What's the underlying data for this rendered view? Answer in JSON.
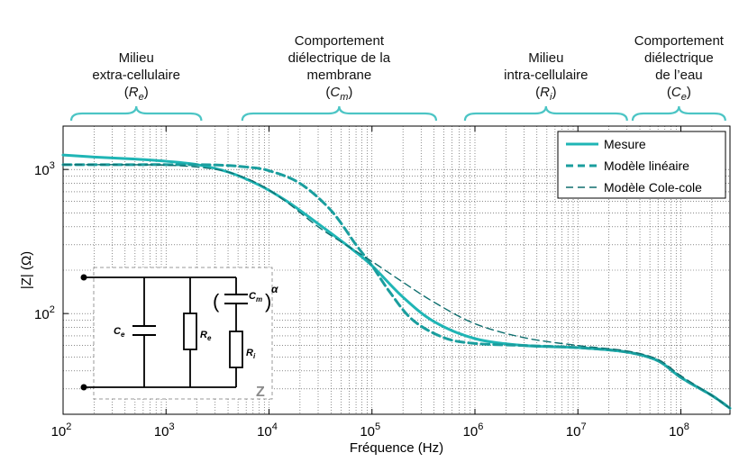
{
  "chart_data": {
    "type": "line",
    "xscale": "log",
    "yscale": "log",
    "xlim": [
      100,
      300000000
    ],
    "ylim": [
      20,
      2000
    ],
    "xlabel": "Fréquence (Hz)",
    "ylabel": "|Z| (Ω)",
    "grid": true,
    "legend_position": "top-right",
    "x_ticks": [
      {
        "value": 100,
        "base": "10",
        "exp": "2"
      },
      {
        "value": 1000,
        "base": "10",
        "exp": "3"
      },
      {
        "value": 10000,
        "base": "10",
        "exp": "4"
      },
      {
        "value": 100000,
        "base": "10",
        "exp": "5"
      },
      {
        "value": 1000000,
        "base": "10",
        "exp": "6"
      },
      {
        "value": 10000000,
        "base": "10",
        "exp": "7"
      },
      {
        "value": 100000000,
        "base": "10",
        "exp": "8"
      }
    ],
    "y_ticks": [
      {
        "value": 100,
        "base": "10",
        "exp": "2"
      },
      {
        "value": 1000,
        "base": "10",
        "exp": "3"
      }
    ],
    "series": [
      {
        "name": "Mesure",
        "color": "#1fb5b5",
        "style": "solid",
        "x": [
          100,
          200,
          500,
          1000,
          2000,
          4000,
          8000,
          15000,
          30000,
          60000,
          100000,
          200000,
          400000,
          1000000,
          3000000,
          10000000,
          30000000,
          60000000,
          100000000,
          200000000,
          300000000
        ],
        "y": [
          1260,
          1220,
          1180,
          1140,
          1080,
          960,
          780,
          600,
          420,
          290,
          215,
          130,
          88,
          67,
          60,
          58,
          54,
          47,
          36,
          27,
          22
        ]
      },
      {
        "name": "Modèle linéaire",
        "color": "#1a9e9e",
        "style": "dashed",
        "x": [
          100,
          200,
          500,
          1000,
          3000,
          6000,
          10000,
          20000,
          40000,
          70000,
          100000,
          150000,
          250000,
          500000,
          1000000,
          3000000,
          10000000,
          30000000,
          60000000,
          100000000,
          200000000,
          300000000
        ],
        "y": [
          1080,
          1080,
          1080,
          1080,
          1075,
          1040,
          980,
          800,
          520,
          300,
          215,
          140,
          90,
          68,
          62,
          60,
          58,
          54,
          47,
          36,
          27,
          22
        ]
      },
      {
        "name": "Modèle Cole-cole",
        "color": "#0f6f6f",
        "style": "dashed-thin",
        "x": [
          100,
          200,
          500,
          1000,
          2000,
          4000,
          8000,
          15000,
          30000,
          60000,
          100000,
          200000,
          400000,
          1000000,
          3000000,
          10000000,
          30000000,
          60000000,
          100000000,
          200000000,
          300000000
        ],
        "y": [
          1080,
          1080,
          1078,
          1070,
          1040,
          960,
          790,
          590,
          400,
          290,
          230,
          165,
          120,
          85,
          68,
          60,
          55,
          48,
          37,
          27,
          22
        ]
      }
    ],
    "regions": [
      {
        "lines": [
          "Milieu",
          "extra-cellulaire"
        ],
        "symbol": "R",
        "sub": "e",
        "x_from": 120,
        "x_to": 2200
      },
      {
        "lines": [
          "Comportement",
          "diélectrique de la",
          "membrane"
        ],
        "symbol": "C",
        "sub": "m",
        "x_from": 5500,
        "x_to": 420000
      },
      {
        "lines": [
          "Milieu",
          "intra-cellulaire"
        ],
        "symbol": "R",
        "sub": "i",
        "x_from": 800000,
        "x_to": 30000000
      },
      {
        "lines": [
          "Comportement",
          "diélectrique",
          "de l’eau"
        ],
        "symbol": "C",
        "sub": "e",
        "x_from": 34000000,
        "x_to": 270000000
      }
    ],
    "inset": {
      "labels": {
        "ce": "C",
        "ce_sub": "e",
        "re": "R",
        "re_sub": "e",
        "cm": "C",
        "cm_sub": "m",
        "alpha": "α",
        "ri": "R",
        "ri_sub": "i",
        "z": "Z"
      }
    }
  }
}
